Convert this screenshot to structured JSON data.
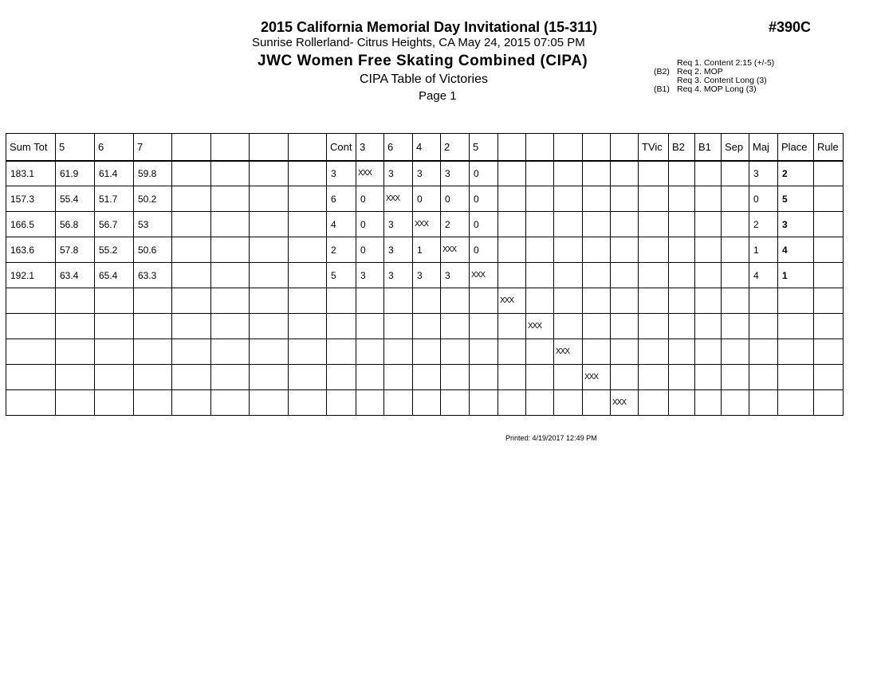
{
  "header": {
    "title": "2015 California Memorial Day Invitational (15-311)",
    "venue": "Sunrise Rollerland- Citrus Heights, CA  May 24, 2015  07:05 PM",
    "event": "JWC Women Free Skating Combined (CIPA)",
    "subtitle": "CIPA Table of Victories",
    "page": "Page 1",
    "event_number": "#390C"
  },
  "requirements": [
    {
      "tag": "",
      "text": "Req  1.  Content  2:15 (+/-5)"
    },
    {
      "tag": "(B2)",
      "text": "Req  2.  MOP"
    },
    {
      "tag": "",
      "text": "Req  3.  Content Long (3)"
    },
    {
      "tag": "(B1)",
      "text": "Req  4.  MOP Long (3)"
    }
  ],
  "table": {
    "columns": [
      "Sum Tot",
      "5",
      "6",
      "7",
      "",
      "",
      "",
      "",
      "Cont",
      "3",
      "6",
      "4",
      "2",
      "5",
      "",
      "",
      "",
      "",
      "",
      "TVic",
      "B2",
      "B1",
      "Sep",
      "Maj",
      "Place",
      "Rule"
    ],
    "rows": [
      [
        "183.1",
        "61.9",
        "61.4",
        "59.8",
        "",
        "",
        "",
        "",
        "3",
        "XXX",
        "3",
        "3",
        "3",
        "0",
        "",
        "",
        "",
        "",
        "",
        "",
        "",
        "",
        "",
        "3",
        "2",
        ""
      ],
      [
        "157.3",
        "55.4",
        "51.7",
        "50.2",
        "",
        "",
        "",
        "",
        "6",
        "0",
        "XXX",
        "0",
        "0",
        "0",
        "",
        "",
        "",
        "",
        "",
        "",
        "",
        "",
        "",
        "0",
        "5",
        ""
      ],
      [
        "166.5",
        "56.8",
        "56.7",
        "53",
        "",
        "",
        "",
        "",
        "4",
        "0",
        "3",
        "XXX",
        "2",
        "0",
        "",
        "",
        "",
        "",
        "",
        "",
        "",
        "",
        "",
        "2",
        "3",
        ""
      ],
      [
        "163.6",
        "57.8",
        "55.2",
        "50.6",
        "",
        "",
        "",
        "",
        "2",
        "0",
        "3",
        "1",
        "XXX",
        "0",
        "",
        "",
        "",
        "",
        "",
        "",
        "",
        "",
        "",
        "1",
        "4",
        ""
      ],
      [
        "192.1",
        "63.4",
        "65.4",
        "63.3",
        "",
        "",
        "",
        "",
        "5",
        "3",
        "3",
        "3",
        "3",
        "XXX",
        "",
        "",
        "",
        "",
        "",
        "",
        "",
        "",
        "",
        "4",
        "1",
        ""
      ],
      [
        "",
        "",
        "",
        "",
        "",
        "",
        "",
        "",
        "",
        "",
        "",
        "",
        "",
        "",
        "XXX",
        "",
        "",
        "",
        "",
        "",
        "",
        "",
        "",
        "",
        "",
        ""
      ],
      [
        "",
        "",
        "",
        "",
        "",
        "",
        "",
        "",
        "",
        "",
        "",
        "",
        "",
        "",
        "",
        "XXX",
        "",
        "",
        "",
        "",
        "",
        "",
        "",
        "",
        "",
        ""
      ],
      [
        "",
        "",
        "",
        "",
        "",
        "",
        "",
        "",
        "",
        "",
        "",
        "",
        "",
        "",
        "",
        "",
        "XXX",
        "",
        "",
        "",
        "",
        "",
        "",
        "",
        "",
        ""
      ],
      [
        "",
        "",
        "",
        "",
        "",
        "",
        "",
        "",
        "",
        "",
        "",
        "",
        "",
        "",
        "",
        "",
        "",
        "XXX",
        "",
        "",
        "",
        "",
        "",
        "",
        "",
        ""
      ],
      [
        "",
        "",
        "",
        "",
        "",
        "",
        "",
        "",
        "",
        "",
        "",
        "",
        "",
        "",
        "",
        "",
        "",
        "",
        "XXX",
        "",
        "",
        "",
        "",
        "",
        "",
        ""
      ]
    ]
  },
  "footer": {
    "printed": "Printed:  4/19/2017  12:49 PM"
  }
}
